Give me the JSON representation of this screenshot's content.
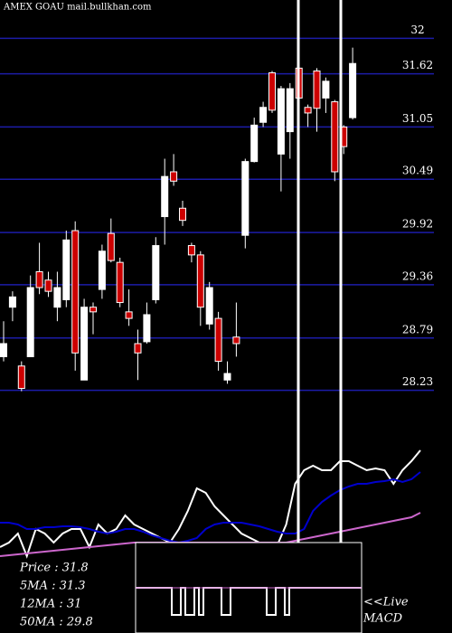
{
  "chart_data": [
    {
      "type": "candlestick",
      "title": "AMEX  GOAU mail.bullkhan.com",
      "ylim": [
        27.8,
        32.41
      ],
      "yticks": [
        32,
        31.62,
        31.05,
        30.49,
        29.92,
        29.36,
        28.79,
        28.23
      ],
      "grid": true,
      "up_color": "#ffffff",
      "down_color": "#cc0000",
      "open": [
        28.59,
        29.12,
        28.49,
        28.59,
        29.5,
        29.41,
        29.12,
        29.2,
        29.94,
        28.34,
        29.12,
        29.31,
        29.91,
        29.6,
        29.07,
        28.73,
        28.75,
        29.2,
        30.09,
        30.57,
        30.18,
        29.78,
        29.68,
        28.94,
        29.0,
        28.34,
        28.8,
        29.89,
        30.68,
        31.1,
        31.63,
        30.76,
        31.0,
        31.68,
        31.26,
        31.65,
        31.36,
        31.32,
        31.05,
        31.15
      ],
      "high": [
        28.97,
        29.29,
        28.54,
        29.46,
        29.81,
        29.5,
        29.5,
        29.94,
        30.04,
        29.21,
        29.17,
        29.79,
        30.07,
        29.65,
        29.31,
        28.88,
        29.17,
        29.87,
        30.71,
        30.76,
        30.26,
        29.81,
        29.72,
        29.39,
        29.07,
        28.54,
        29.17,
        30.71,
        31.15,
        31.32,
        31.65,
        31.49,
        31.52,
        31.73,
        31.29,
        31.68,
        31.58,
        31.34,
        31.07,
        31.9
      ],
      "low": [
        28.54,
        28.97,
        28.22,
        28.59,
        29.26,
        29.23,
        28.97,
        29.12,
        28.44,
        28.34,
        28.83,
        29.21,
        29.6,
        29.12,
        28.92,
        28.34,
        28.73,
        29.16,
        29.79,
        30.42,
        29.99,
        29.6,
        28.92,
        28.88,
        28.44,
        28.3,
        28.59,
        29.75,
        30.67,
        31.05,
        31.2,
        30.36,
        30.71,
        30.71,
        31.05,
        31.0,
        31.2,
        30.47,
        30.76,
        31.13
      ],
      "close": [
        28.73,
        29.23,
        28.25,
        29.33,
        29.33,
        29.29,
        29.33,
        29.84,
        28.63,
        29.12,
        29.07,
        29.72,
        29.62,
        29.17,
        29.0,
        28.63,
        29.04,
        29.78,
        30.52,
        30.47,
        30.05,
        29.68,
        29.12,
        29.33,
        28.54,
        28.41,
        28.73,
        30.68,
        31.07,
        31.26,
        31.23,
        31.46,
        31.46,
        31.36,
        31.2,
        31.25,
        31.54,
        30.57,
        30.84,
        31.73
      ],
      "stats": [
        "Price   : 31.8",
        "5MA   : 31.3",
        "12MA   : 31",
        "50MA   : 29.8"
      ],
      "live_label": "<<Live",
      "macd_label": "MACD"
    },
    {
      "type": "line",
      "ylim": [
        -10,
        130
      ],
      "series": [
        {
          "color": "#ffffff",
          "values": [
            5,
            10,
            20,
            -5,
            25,
            20,
            10,
            20,
            25,
            25,
            5,
            30,
            20,
            25,
            40,
            30,
            25,
            20,
            15,
            10,
            25,
            45,
            70,
            65,
            50,
            40,
            30,
            20,
            15,
            10,
            10,
            7,
            30,
            75,
            90,
            95,
            90,
            90,
            100,
            100,
            95,
            90,
            92,
            90,
            75,
            90,
            100,
            112
          ]
        },
        {
          "color": "#0000cc",
          "values": [
            32,
            32,
            30,
            25,
            25,
            27,
            27,
            28,
            28,
            27,
            25,
            22,
            20,
            22,
            25,
            25,
            22,
            18,
            15,
            12,
            10,
            12,
            15,
            25,
            30,
            32,
            32,
            32,
            30,
            28,
            25,
            22,
            20,
            20,
            25,
            45,
            55,
            62,
            68,
            72,
            75,
            75,
            77,
            78,
            80,
            77,
            80,
            88
          ]
        },
        {
          "color": "#cc66cc",
          "values": [
            -5,
            -4,
            -3,
            -2,
            -1,
            0,
            1,
            2,
            3,
            4,
            5,
            6,
            7,
            8,
            9,
            10,
            10,
            10,
            10,
            10,
            10,
            10,
            10,
            10,
            10,
            10,
            10,
            10,
            10,
            10,
            10,
            10,
            10,
            12,
            14,
            16,
            18,
            20,
            22,
            24,
            26,
            28,
            30,
            32,
            34,
            36,
            38,
            43
          ]
        }
      ]
    }
  ]
}
